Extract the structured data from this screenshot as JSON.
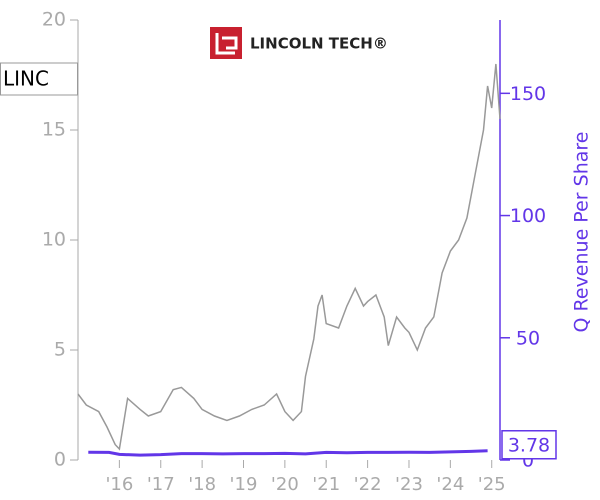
{
  "logo_text": "LINCOLN TECH®",
  "chart_data": {
    "type": "line",
    "y2label": "Q Revenue Per Share",
    "xlim": [
      2015.0,
      2025.2
    ],
    "xticks": [
      {
        "value": 2016,
        "label": "'16"
      },
      {
        "value": 2017,
        "label": "'17"
      },
      {
        "value": 2018,
        "label": "'18"
      },
      {
        "value": 2019,
        "label": "'19"
      },
      {
        "value": 2020,
        "label": "'20"
      },
      {
        "value": 2021,
        "label": "'21"
      },
      {
        "value": 2022,
        "label": "'22"
      },
      {
        "value": 2023,
        "label": "'23"
      },
      {
        "value": 2024,
        "label": "'24"
      },
      {
        "value": 2025,
        "label": "'25"
      }
    ],
    "ylim": [
      0,
      20
    ],
    "yticks": [
      0,
      5,
      10,
      15,
      20
    ],
    "y2lim": [
      0,
      180
    ],
    "y2ticks": [
      0,
      50,
      100,
      150
    ],
    "series": [
      {
        "name": "LINC",
        "color": "#999999",
        "x": [
          2015.0,
          2015.2,
          2015.5,
          2015.7,
          2015.9,
          2016.0,
          2016.2,
          2016.5,
          2016.7,
          2017.0,
          2017.3,
          2017.5,
          2017.8,
          2018.0,
          2018.3,
          2018.6,
          2018.9,
          2019.2,
          2019.5,
          2019.8,
          2020.0,
          2020.2,
          2020.4,
          2020.5,
          2020.7,
          2020.8,
          2020.9,
          2021.0,
          2021.3,
          2021.5,
          2021.7,
          2021.9,
          2022.0,
          2022.2,
          2022.4,
          2022.5,
          2022.7,
          2022.9,
          2023.0,
          2023.2,
          2023.4,
          2023.6,
          2023.8,
          2024.0,
          2024.2,
          2024.4,
          2024.6,
          2024.8,
          2024.9,
          2025.0,
          2025.1,
          2025.2
        ],
        "values": [
          3.0,
          2.5,
          2.2,
          1.5,
          0.7,
          0.5,
          2.8,
          2.3,
          2.0,
          2.2,
          3.2,
          3.3,
          2.8,
          2.3,
          2.0,
          1.8,
          2.0,
          2.3,
          2.5,
          3.0,
          2.2,
          1.8,
          2.2,
          3.8,
          5.5,
          7.0,
          7.5,
          6.2,
          6.0,
          7.0,
          7.8,
          7.0,
          7.2,
          7.5,
          6.5,
          5.2,
          6.5,
          6.0,
          5.8,
          5.0,
          6.0,
          6.5,
          8.5,
          9.5,
          10.0,
          11.0,
          13.0,
          15.0,
          17.0,
          16.0,
          18.0,
          15.5
        ]
      },
      {
        "color": "#6236e8",
        "axis": "y2",
        "x": [
          2015.25,
          2015.75,
          2016.0,
          2016.5,
          2017.0,
          2017.5,
          2018.0,
          2018.5,
          2019.0,
          2019.5,
          2020.0,
          2020.5,
          2021.0,
          2021.5,
          2022.0,
          2022.5,
          2023.0,
          2023.5,
          2024.0,
          2024.5,
          2024.9
        ],
        "values": [
          3.2,
          3.1,
          2.3,
          2.0,
          2.2,
          2.6,
          2.6,
          2.5,
          2.6,
          2.6,
          2.7,
          2.5,
          3.1,
          3.0,
          3.1,
          3.1,
          3.2,
          3.1,
          3.3,
          3.5,
          3.78
        ],
        "value_labels": [
          null,
          null,
          null,
          null,
          null,
          null,
          null,
          null,
          null,
          null,
          null,
          null,
          null,
          null,
          null,
          null,
          null,
          null,
          null,
          null,
          "3.78"
        ]
      }
    ]
  }
}
